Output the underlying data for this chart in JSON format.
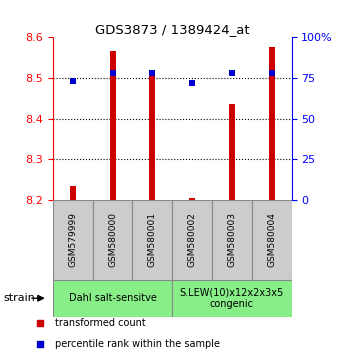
{
  "title": "GDS3873 / 1389424_at",
  "samples": [
    "GSM579999",
    "GSM580000",
    "GSM580001",
    "GSM580002",
    "GSM580003",
    "GSM580004"
  ],
  "bar_values": [
    8.235,
    8.565,
    8.51,
    8.205,
    8.435,
    8.575
  ],
  "bar_bottom": 8.2,
  "percentile_values": [
    73,
    78,
    78,
    72,
    78,
    78
  ],
  "left_ylim": [
    8.2,
    8.6
  ],
  "right_ylim": [
    0,
    100
  ],
  "left_yticks": [
    8.2,
    8.3,
    8.4,
    8.5,
    8.6
  ],
  "right_yticks": [
    0,
    25,
    50,
    75,
    100
  ],
  "right_yticklabels": [
    "0",
    "25",
    "50",
    "75",
    "100%"
  ],
  "bar_color": "#cc0000",
  "dot_color": "#0000cc",
  "group1_label": "Dahl salt-sensitve",
  "group2_label": "S.LEW(10)x12x2x3x5\ncongenic",
  "group1_indices": [
    0,
    1,
    2
  ],
  "group2_indices": [
    3,
    4,
    5
  ],
  "group_bg_color": "#88ee88",
  "sample_bg_color": "#cccccc",
  "legend_red_label": "transformed count",
  "legend_blue_label": "percentile rank within the sample",
  "strain_label": "strain",
  "bar_width": 0.15
}
